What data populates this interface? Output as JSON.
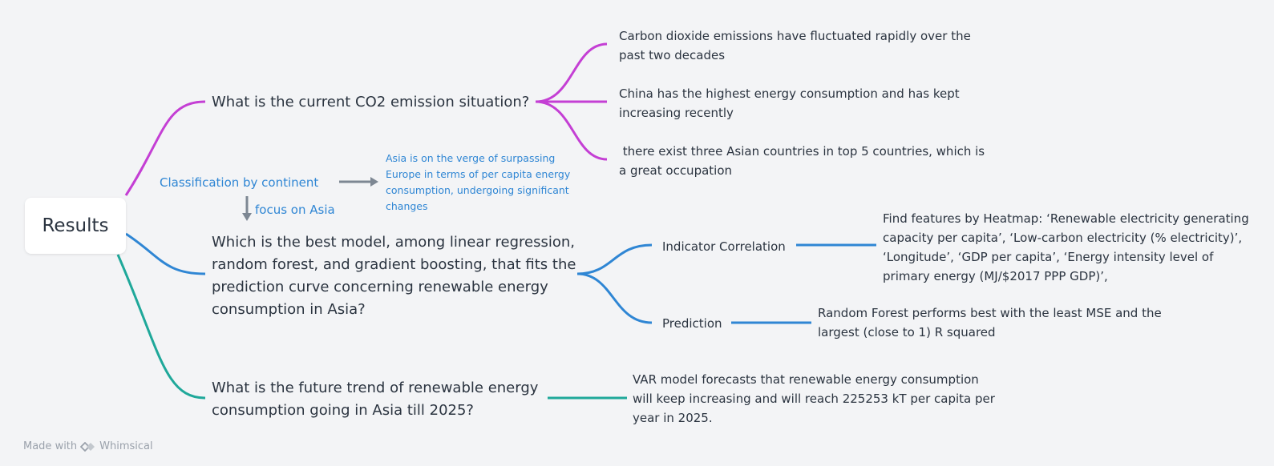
{
  "root": {
    "label": "Results"
  },
  "branches": [
    {
      "question": "What is the current CO2 emission situation?",
      "color": "#c43fd4",
      "findings": [
        "Carbon dioxide emissions have fluctuated rapidly over the past two decades",
        "China has the highest energy consumption and has kept increasing recently",
        " there exist three Asian countries in top 5 countries, which is a great occupation"
      ]
    },
    {
      "question": "Which is the best model, among linear regression, random forest, and gradient boosting, that fits the prediction curve concerning renewable energy consumption in Asia?",
      "color": "#2f86d4",
      "subtopics": [
        {
          "label": "Indicator Correlation",
          "detail": "Find features by Heatmap: ‘Renewable electricity generating capacity per capita’, ‘Low-carbon electricity (% electricity)’, ‘Longitude’, ‘GDP per capita’, ‘Energy intensity level of primary energy (MJ/$2017 PPP GDP)’,"
        },
        {
          "label": "Prediction",
          "detail": "Random Forest performs best with the least MSE and the largest (close to 1) R squared"
        }
      ]
    },
    {
      "question": "What is the future trend of renewable energy consumption going in Asia till 2025?",
      "color": "#1fa89a",
      "findings": [
        "VAR model forecasts that renewable energy consumption will keep increasing and will reach 225253 kT per capita per year in 2025."
      ]
    }
  ],
  "classification": {
    "label": "Classification by continent",
    "note": "Asia is on the verge of surpassing Europe in terms of per capita energy consumption, undergoing significant changes",
    "focus": "focus on Asia",
    "arrow_color": "#7d8793"
  },
  "footer": {
    "made_with": "Made with",
    "brand": "Whimsical",
    "logo_icon": "whimsical-logo-icon"
  }
}
